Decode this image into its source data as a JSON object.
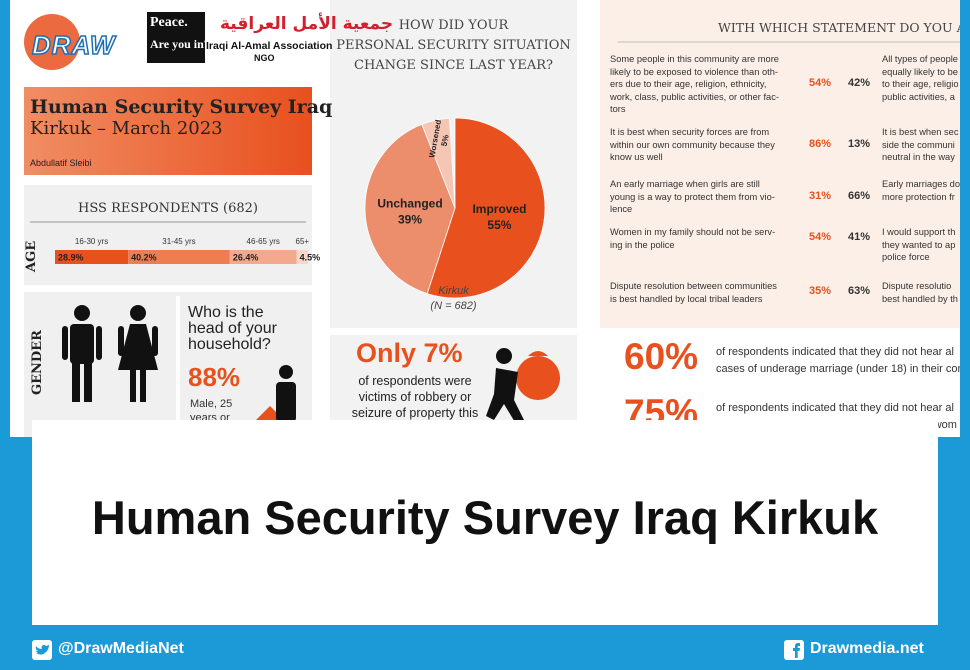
{
  "logo": {
    "brand": "DRAW",
    "badge": [
      "Peace.",
      "Are you in?"
    ],
    "org_arabic": "جمعية الأمل العراقية",
    "org_name": "Iraqi Al-Amal Association",
    "org_type": "NGO"
  },
  "cover": {
    "title": "Human Security Survey Iraq",
    "subtitle": "Kirkuk –  March 2023",
    "author": "Abdullatif Sleibi"
  },
  "respondents": {
    "title": "HSS RESPONDENTS (682)",
    "age": {
      "label": "AGE",
      "groups": [
        "16-30 yrs",
        "31-45 yrs",
        "46-65 yrs",
        "65+"
      ],
      "values": [
        28.9,
        40.2,
        26.4,
        4.5
      ],
      "value_labels": [
        "28.9%",
        "40.2%",
        "26.4%",
        "4.5%"
      ],
      "colors": [
        "#e8501e",
        "#ee7d52",
        "#f3aa8c",
        "#f9d6c7"
      ]
    }
  },
  "gender": {
    "label": "GENDER",
    "question": [
      "Who is the",
      "head of your",
      "household?"
    ],
    "stat": "88%",
    "note": [
      "Male, 25",
      "years or"
    ]
  },
  "security_chart": {
    "type": "pie",
    "title": [
      "HOW DID YOUR",
      "PERSONAL SECURITY SITUATION",
      "CHANGE SINCE LAST YEAR?"
    ],
    "labels": [
      "Improved",
      "Unchanged",
      "Worsened"
    ],
    "values": [
      55,
      39,
      5
    ],
    "value_labels": [
      "55%",
      "39%",
      "5%"
    ],
    "colors": [
      "#e8501e",
      "#ec8e6c",
      "#f5c6b4"
    ],
    "caption": "Kirkuk",
    "note": "(N = 682)"
  },
  "robbery": {
    "headline": "Only 7%",
    "lines": [
      "of respondents were",
      "victims of robbery or",
      "seizure of property this"
    ]
  },
  "statements": {
    "title": "WITH WHICH STATEMENT DO YOU AGREE",
    "rows": [
      {
        "left": [
          "Some people in this community are more",
          "likely to be exposed to violence than oth-",
          "ers due to their age, religion, ethnicity,",
          "work, class, public activities, or other fac-",
          "tors"
        ],
        "left_value": "54%",
        "right_value": "42%",
        "right": [
          "All types of people",
          "equally likely to be",
          "to their age, religio",
          "public activities, a"
        ]
      },
      {
        "left": [
          "It is best when security forces are from",
          "within our own community because they",
          "know us well"
        ],
        "left_value": "86%",
        "right_value": "13%",
        "right": [
          "It is best when sec",
          "side the communi",
          "neutral in the way"
        ]
      },
      {
        "left": [
          "An early marriage when girls are still",
          "young is a way to protect them from vio-",
          "lence"
        ],
        "left_value": "31%",
        "right_value": "66%",
        "right": [
          "Early marriages do",
          "more protection fr"
        ]
      },
      {
        "left": [
          "Women in my family should not be serv-",
          "ing in the police"
        ],
        "left_value": "54%",
        "right_value": "41%",
        "right": [
          "I would support th",
          "they wanted to ap",
          "police force"
        ]
      },
      {
        "left": [
          "Dispute resolution between communities",
          "is best handled by local tribal leaders"
        ],
        "left_value": "35%",
        "right_value": "63%",
        "right": [
          "Dispute resolutio",
          "best handled by th"
        ]
      }
    ]
  },
  "marriage": [
    {
      "stat": "60%",
      "lines": [
        "of respondents indicated that they did not hear al",
        "cases of underage marriage (under 18) in their comr"
      ]
    },
    {
      "stat": "75%",
      "lines": [
        "of respondents indicated that they did not hear al",
        "cases of forced marriage happening to adult wom"
      ]
    }
  ],
  "headline": "Human Security Survey Iraq Kirkuk",
  "footer": {
    "twitter": "@DrawMediaNet",
    "facebook": "Drawmedia.net"
  }
}
